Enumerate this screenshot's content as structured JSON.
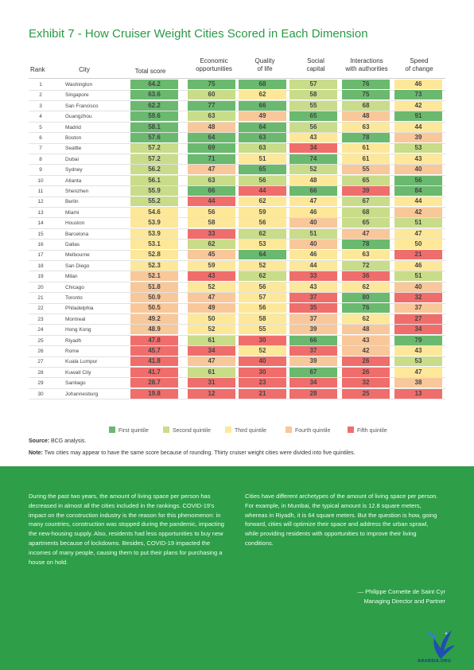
{
  "title": "Exhibit 7 - How Cruiser Weight Cities Scored in Each Dimension",
  "headers": {
    "rank": "Rank",
    "city": "City",
    "total": "Total score",
    "econ_1": "Economic",
    "econ_2": "opportunities",
    "qol_1": "Quality",
    "qol_2": "of life",
    "social_1": "Social",
    "social_2": "capital",
    "inter_1": "Interactions",
    "inter_2": "with authorities",
    "speed_1": "Speed",
    "speed_2": "of change"
  },
  "colors": {
    "first": "#6ab96f",
    "second": "#c9dc8a",
    "third": "#fde89a",
    "fourth": "#f8c79a",
    "fifth": "#ef6e6c"
  },
  "chart_data": {
    "type": "table",
    "columns": [
      "Total score",
      "Economic opportunities",
      "Quality of life",
      "Social capital",
      "Interactions with authorities",
      "Speed of change"
    ],
    "rows": [
      {
        "rank": "1",
        "city": "Washington",
        "values": [
          "64.2",
          "75",
          "68",
          "57",
          "76",
          "46"
        ],
        "quintiles": [
          1,
          1,
          1,
          2,
          1,
          3
        ]
      },
      {
        "rank": "2",
        "city": "Singapore",
        "values": [
          "63.6",
          "60",
          "62",
          "58",
          "75",
          "73"
        ],
        "quintiles": [
          1,
          2,
          3,
          2,
          1,
          1
        ]
      },
      {
        "rank": "3",
        "city": "San Francisco",
        "values": [
          "62.2",
          "77",
          "66",
          "55",
          "68",
          "42"
        ],
        "quintiles": [
          1,
          1,
          1,
          2,
          2,
          3
        ]
      },
      {
        "rank": "4",
        "city": "Guangzhou",
        "values": [
          "59.6",
          "63",
          "49",
          "65",
          "48",
          "91"
        ],
        "quintiles": [
          1,
          2,
          4,
          1,
          4,
          1
        ]
      },
      {
        "rank": "5",
        "city": "Madrid",
        "values": [
          "58.1",
          "48",
          "64",
          "56",
          "63",
          "44"
        ],
        "quintiles": [
          1,
          4,
          1,
          2,
          3,
          3
        ]
      },
      {
        "rank": "6",
        "city": "Boston",
        "values": [
          "57.6",
          "64",
          "63",
          "43",
          "78",
          "39"
        ],
        "quintiles": [
          1,
          1,
          1,
          3,
          1,
          4
        ]
      },
      {
        "rank": "7",
        "city": "Seattle",
        "values": [
          "57.2",
          "69",
          "63",
          "34",
          "61",
          "53"
        ],
        "quintiles": [
          2,
          1,
          2,
          5,
          3,
          2
        ]
      },
      {
        "rank": "8",
        "city": "Dubai",
        "values": [
          "57.2",
          "71",
          "51",
          "74",
          "61",
          "43"
        ],
        "quintiles": [
          2,
          1,
          3,
          1,
          3,
          3
        ]
      },
      {
        "rank": "9",
        "city": "Sydney",
        "values": [
          "56.2",
          "47",
          "65",
          "52",
          "55",
          "40"
        ],
        "quintiles": [
          2,
          4,
          1,
          2,
          4,
          4
        ]
      },
      {
        "rank": "10",
        "city": "Atlanta",
        "values": [
          "56.1",
          "63",
          "56",
          "48",
          "65",
          "56"
        ],
        "quintiles": [
          2,
          2,
          2,
          3,
          2,
          1
        ]
      },
      {
        "rank": "11",
        "city": "Shenzhen",
        "values": [
          "55.9",
          "66",
          "44",
          "66",
          "39",
          "84"
        ],
        "quintiles": [
          2,
          1,
          5,
          1,
          5,
          1
        ]
      },
      {
        "rank": "12",
        "city": "Berlin",
        "values": [
          "55.2",
          "44",
          "62",
          "47",
          "67",
          "44"
        ],
        "quintiles": [
          2,
          5,
          3,
          3,
          2,
          3
        ]
      },
      {
        "rank": "13",
        "city": "Miami",
        "values": [
          "54.6",
          "56",
          "59",
          "46",
          "68",
          "42"
        ],
        "quintiles": [
          3,
          3,
          3,
          3,
          2,
          4
        ]
      },
      {
        "rank": "14",
        "city": "Houston",
        "values": [
          "53.9",
          "58",
          "56",
          "40",
          "65",
          "51"
        ],
        "quintiles": [
          3,
          3,
          3,
          4,
          2,
          2
        ]
      },
      {
        "rank": "15",
        "city": "Barcelona",
        "values": [
          "53.9",
          "33",
          "62",
          "51",
          "47",
          "47"
        ],
        "quintiles": [
          3,
          5,
          2,
          2,
          4,
          3
        ]
      },
      {
        "rank": "16",
        "city": "Dallas",
        "values": [
          "53.1",
          "62",
          "53",
          "40",
          "78",
          "50"
        ],
        "quintiles": [
          3,
          2,
          3,
          4,
          1,
          3
        ]
      },
      {
        "rank": "17",
        "city": "Melbourne",
        "values": [
          "52.8",
          "45",
          "64",
          "46",
          "63",
          "21"
        ],
        "quintiles": [
          3,
          4,
          1,
          3,
          3,
          5
        ]
      },
      {
        "rank": "18",
        "city": "San Diego",
        "values": [
          "52.3",
          "59",
          "52",
          "44",
          "72",
          "46"
        ],
        "quintiles": [
          3,
          3,
          3,
          3,
          2,
          3
        ]
      },
      {
        "rank": "19",
        "city": "Milan",
        "values": [
          "52.1",
          "43",
          "62",
          "33",
          "36",
          "51"
        ],
        "quintiles": [
          4,
          5,
          2,
          5,
          5,
          2
        ]
      },
      {
        "rank": "20",
        "city": "Chicago",
        "values": [
          "51.8",
          "52",
          "56",
          "43",
          "62",
          "40"
        ],
        "quintiles": [
          4,
          3,
          3,
          3,
          3,
          4
        ]
      },
      {
        "rank": "21",
        "city": "Toronto",
        "values": [
          "50.9",
          "47",
          "57",
          "37",
          "80",
          "32"
        ],
        "quintiles": [
          4,
          4,
          3,
          5,
          1,
          5
        ]
      },
      {
        "rank": "22",
        "city": "Philadelphia",
        "values": [
          "50.5",
          "49",
          "56",
          "35",
          "76",
          "37"
        ],
        "quintiles": [
          4,
          4,
          3,
          5,
          1,
          4
        ]
      },
      {
        "rank": "23",
        "city": "Montreal",
        "values": [
          "49.2",
          "50",
          "58",
          "37",
          "62",
          "27"
        ],
        "quintiles": [
          4,
          3,
          3,
          4,
          3,
          5
        ]
      },
      {
        "rank": "24",
        "city": "Hong Kong",
        "values": [
          "48.9",
          "52",
          "55",
          "39",
          "48",
          "34"
        ],
        "quintiles": [
          4,
          3,
          3,
          4,
          4,
          5
        ]
      },
      {
        "rank": "25",
        "city": "Riyadh",
        "values": [
          "47.8",
          "61",
          "30",
          "66",
          "43",
          "79"
        ],
        "quintiles": [
          5,
          2,
          5,
          1,
          4,
          1
        ]
      },
      {
        "rank": "26",
        "city": "Rome",
        "values": [
          "45.7",
          "34",
          "52",
          "37",
          "42",
          "43"
        ],
        "quintiles": [
          5,
          5,
          3,
          5,
          4,
          3
        ]
      },
      {
        "rank": "27",
        "city": "Kuala Lumpur",
        "values": [
          "41.8",
          "47",
          "40",
          "39",
          "26",
          "53"
        ],
        "quintiles": [
          5,
          4,
          5,
          4,
          5,
          2
        ]
      },
      {
        "rank": "28",
        "city": "Kuwait City",
        "values": [
          "41.7",
          "61",
          "30",
          "67",
          "26",
          "47"
        ],
        "quintiles": [
          5,
          2,
          5,
          1,
          5,
          3
        ]
      },
      {
        "rank": "29",
        "city": "Santiago",
        "values": [
          "28.7",
          "31",
          "23",
          "34",
          "32",
          "38"
        ],
        "quintiles": [
          5,
          5,
          5,
          5,
          5,
          4
        ]
      },
      {
        "rank": "30",
        "city": "Johannesburg",
        "values": [
          "19.8",
          "12",
          "21",
          "28",
          "25",
          "13"
        ],
        "quintiles": [
          5,
          5,
          5,
          5,
          5,
          5
        ]
      }
    ]
  },
  "legend": [
    {
      "label": "First quintile",
      "color": "#6ab96f"
    },
    {
      "label": "Second quintile",
      "color": "#c9dc8a"
    },
    {
      "label": "Third quintile",
      "color": "#fde89a"
    },
    {
      "label": "Fourth quintile",
      "color": "#f8c79a"
    },
    {
      "label": "Fifth quintile",
      "color": "#ef6e6c"
    }
  ],
  "source_label": "Source:",
  "source_text": " BCG analysis.",
  "note_label": "Note:",
  "note_text": " Two cities may appear to have the same score because of rounding. Thirty cruiser weight cities were divided into five quintiles.",
  "left_paragraph": "During the past two years, the amount of living space per person has decreased in almost all the cities included in the rankings. COVID-19’s impact on the construction industry is the reason for this phenomenon: in many countries, construction was stopped during the pandemic, impacting the new-housing supply. Also, residents had less opportunities to buy new apartments because of lockdowns. Besides, COVID-19 impacted the incomes of many people, causing them to put their plans for purchasing a house on hold.",
  "right_paragraph": "Cities have different archetypes of the amount of living space per person. For example, in Mumbai, the typical amount is 12.8 square meters, whereas in Riyadh, it is 64 square meters. But the question is how, going forward, cities will optimize their space and address the urban sprawl, while providing residents with opportunities to improve their living conditions.",
  "quote_author": "— Philippe Cornette de Saint Cyr",
  "quote_role": "Managing Director and Partner",
  "logo_text": "ARABSIA.ORG"
}
